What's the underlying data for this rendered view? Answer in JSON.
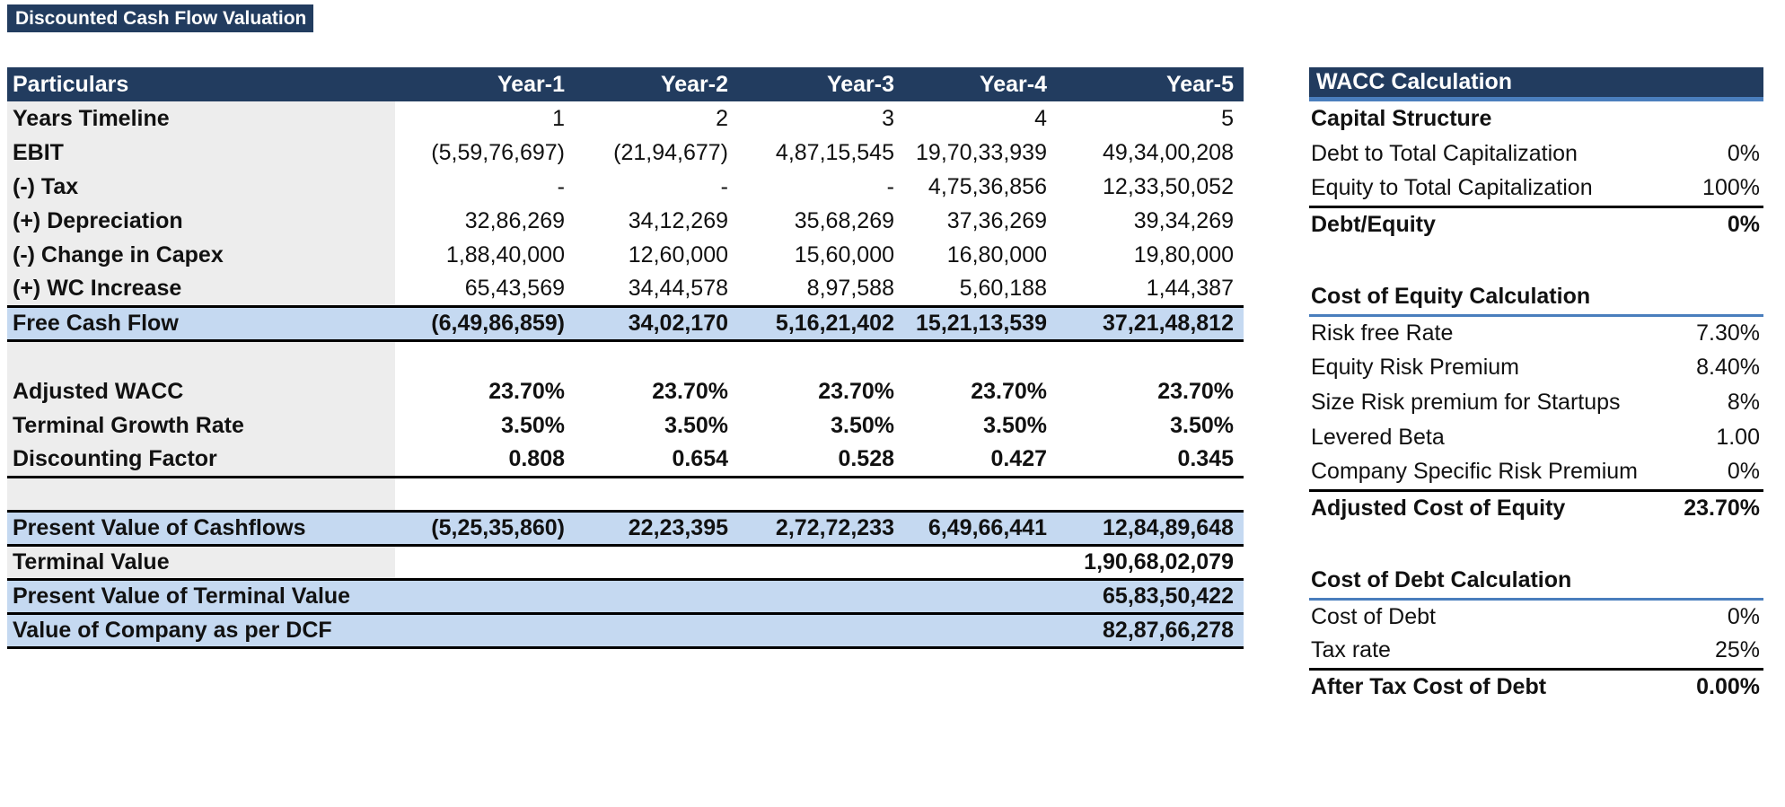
{
  "page_title": "Discounted Cash Flow Valuation",
  "dcf_table": {
    "columns": [
      "Particulars",
      "Year-1",
      "Year-2",
      "Year-3",
      "Year-4",
      "Year-5"
    ],
    "rows": [
      {
        "label": "Years Timeline",
        "kind": "data",
        "values": [
          "1",
          "2",
          "3",
          "4",
          "5"
        ]
      },
      {
        "label": "EBIT",
        "kind": "data",
        "values": [
          "(5,59,76,697)",
          "(21,94,677)",
          "4,87,15,545",
          "19,70,33,939",
          "49,34,00,208"
        ]
      },
      {
        "label": "(-) Tax",
        "kind": "data",
        "values": [
          "-",
          "-",
          "-",
          "4,75,36,856",
          "12,33,50,052"
        ]
      },
      {
        "label": "(+) Depreciation",
        "kind": "data",
        "values": [
          "32,86,269",
          "34,12,269",
          "35,68,269",
          "37,36,269",
          "39,34,269"
        ]
      },
      {
        "label": "(-) Change in Capex",
        "kind": "data",
        "values": [
          "1,88,40,000",
          "12,60,000",
          "15,60,000",
          "16,80,000",
          "19,80,000"
        ]
      },
      {
        "label": "(+) WC Increase",
        "kind": "data",
        "values": [
          "65,43,569",
          "34,44,578",
          "8,97,588",
          "5,60,188",
          "1,44,387"
        ]
      },
      {
        "label": "Free Cash Flow",
        "kind": "subtotal",
        "values": [
          "(6,49,86,859)",
          "34,02,170",
          "5,16,21,402",
          "15,21,13,539",
          "37,21,48,812"
        ]
      },
      {
        "label": "",
        "kind": "blank",
        "values": [
          "",
          "",
          "",
          "",
          ""
        ]
      },
      {
        "label": "Adjusted WACC",
        "kind": "factor",
        "values": [
          "23.70%",
          "23.70%",
          "23.70%",
          "23.70%",
          "23.70%"
        ]
      },
      {
        "label": "Terminal Growth Rate",
        "kind": "factor",
        "values": [
          "3.50%",
          "3.50%",
          "3.50%",
          "3.50%",
          "3.50%"
        ]
      },
      {
        "label": "Discounting Factor",
        "kind": "factor",
        "rule_below": true,
        "values": [
          "0.808",
          "0.654",
          "0.528",
          "0.427",
          "0.345"
        ]
      },
      {
        "label": "",
        "kind": "blank",
        "values": [
          "",
          "",
          "",
          "",
          ""
        ]
      },
      {
        "label": "Present Value of Cashflows",
        "kind": "subtotal",
        "values": [
          "(5,25,35,860)",
          "22,23,395",
          "2,72,72,233",
          "6,49,66,441",
          "12,84,89,648"
        ]
      },
      {
        "label": "Terminal Value",
        "kind": "result",
        "rule_below": true,
        "values": [
          "",
          "",
          "",
          "",
          "1,90,68,02,079"
        ]
      },
      {
        "label": "Present Value of Terminal Value",
        "kind": "grand",
        "values": [
          "",
          "",
          "",
          "",
          "65,83,50,422"
        ]
      },
      {
        "label": "Value of Company as per DCF",
        "kind": "grand",
        "values": [
          "",
          "",
          "",
          "",
          "82,87,66,278"
        ]
      }
    ]
  },
  "wacc_panel": {
    "title": "WACC Calculation",
    "rows": [
      {
        "label": "Capital Structure",
        "value": "",
        "bold": true,
        "rule": "none"
      },
      {
        "label": "Debt to Total Capitalization",
        "value": "0%",
        "bold": false,
        "rule": "none"
      },
      {
        "label": "Equity to Total Capitalization",
        "value": "100%",
        "bold": false,
        "rule": "black"
      },
      {
        "label": "Debt/Equity",
        "value": "0%",
        "bold": true,
        "rule": "none"
      },
      {
        "label": "",
        "value": "",
        "bold": false,
        "rule": "none",
        "blank": true
      },
      {
        "label": "Cost of Equity Calculation",
        "value": "",
        "bold": true,
        "rule": "blue"
      },
      {
        "label": "Risk free Rate",
        "value": "7.30%",
        "bold": false,
        "rule": "none"
      },
      {
        "label": "Equity Risk Premium",
        "value": "8.40%",
        "bold": false,
        "rule": "none"
      },
      {
        "label": "Size Risk premium for Startups",
        "value": "8%",
        "bold": false,
        "rule": "none"
      },
      {
        "label": "Levered Beta",
        "value": "1.00",
        "bold": false,
        "rule": "none"
      },
      {
        "label": "Company Specific Risk Premium",
        "value": "0%",
        "bold": false,
        "rule": "black"
      },
      {
        "label": "Adjusted Cost of Equity",
        "value": "23.70%",
        "bold": true,
        "rule": "none"
      },
      {
        "label": "",
        "value": "",
        "bold": false,
        "rule": "none",
        "blank": true
      },
      {
        "label": "Cost of Debt Calculation",
        "value": "",
        "bold": true,
        "rule": "blue"
      },
      {
        "label": "Cost of Debt",
        "value": "0%",
        "bold": false,
        "rule": "none"
      },
      {
        "label": "Tax rate",
        "value": "25%",
        "bold": false,
        "rule": "black"
      },
      {
        "label": "After Tax Cost of Debt",
        "value": "0.00%",
        "bold": true,
        "rule": "none"
      }
    ]
  },
  "colors": {
    "header_navy": "#223C5F",
    "highlight_blue": "#C5D9F1",
    "label_gray": "#EDEDED",
    "accent_rule_blue": "#4A7EBD",
    "sum_rule_black": "#000000"
  }
}
